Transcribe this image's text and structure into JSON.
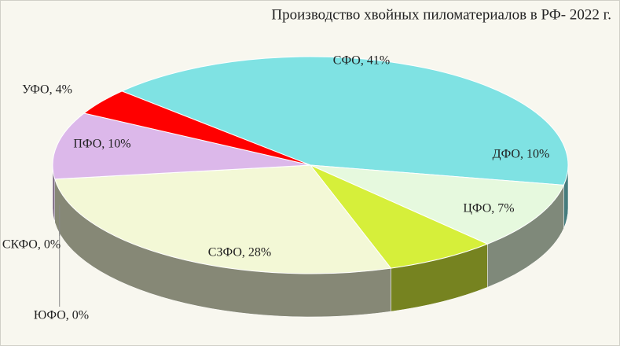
{
  "chart_data": {
    "type": "pie",
    "title": "Производство хвойных пиломатериалов в РФ- 2022 г.",
    "categories": [
      "СФО",
      "ДФО",
      "ЦФО",
      "СЗФО",
      "ЮФО",
      "СКФО",
      "ПФО",
      "УФО"
    ],
    "values": [
      41,
      10,
      7,
      28,
      0,
      0,
      10,
      4
    ],
    "value_labels": [
      "СФО, 41%",
      "ДФО, 10%",
      "ЦФО, 7%",
      "СЗФО, 28%",
      "ЮФО, 0%",
      "СКФО, 0%",
      "ПФО, 10%",
      "УФО, 4%"
    ],
    "colors": [
      "#7fe2e3",
      "#e6f9de",
      "#d6ef3a",
      "#f3f8d6",
      "#9a9ac0",
      "#b8a0d0",
      "#dcb8ea",
      "#ff0000"
    ]
  }
}
